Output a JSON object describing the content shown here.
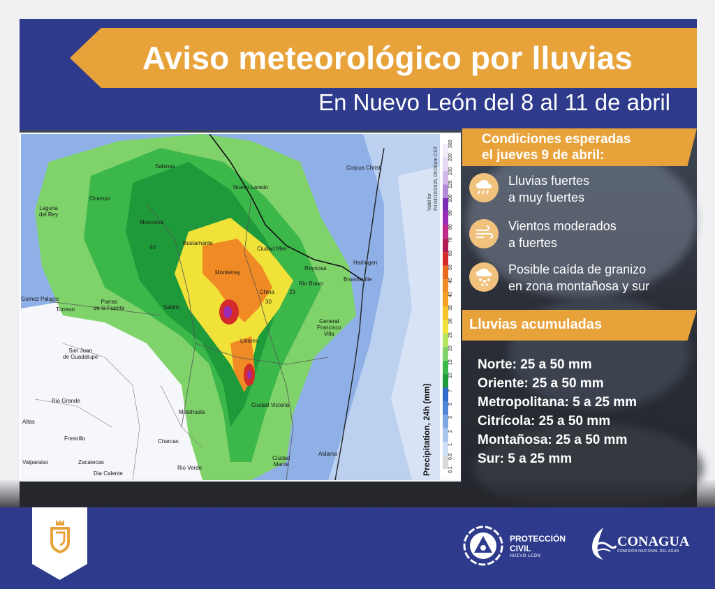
{
  "header": {
    "title": "Aviso meteorológico por lluvias",
    "subtitle": "En Nuevo León del 8 al 11 de abril"
  },
  "map": {
    "colorbar_title": "Precipitation, 24h (mm)",
    "valid_text": "Valid for\nFri 04/10/2026, 09:00am CST",
    "colorbar_ticks": [
      "0.1",
      "0.5",
      "1",
      "2",
      "3",
      "5",
      "7",
      "10",
      "15",
      "20",
      "25",
      "30",
      "35",
      "40",
      "45",
      "50",
      "60",
      "70",
      "80",
      "90",
      "100",
      "125",
      "150",
      "200",
      "300"
    ],
    "places": {
      "corpus_christi": "Corpus Christi",
      "sabinas": "Sabinas",
      "nuevo_laredo": "Nuevo Laredo",
      "ocampo": "Ocampo",
      "laguna_del_rey": "Laguna\ndel Rey",
      "monclova": "Monclova",
      "bustamante": "Bustamante",
      "ciudad_mier": "Ciudad Mier",
      "reynosa": "Reynosa",
      "harlingen": "Harlingen",
      "brownsville": "Brownsville",
      "rio_bravo": "Rio Bravo",
      "monterrey": "Monterrey",
      "china": "China",
      "gomez_palacio": "Gomez Palacio",
      "torreon": "Torreon",
      "parras": "Parras\nde la Fuente",
      "saltillo": "Saltillo",
      "general_francisco_villa": "General\nFrancisco\nVilla",
      "linares": "Linares",
      "san_juan": "San Juan\nde Guadalupe",
      "rio_grande": "Rio Grande",
      "ciudad_victoria": "Ciudad Victoria",
      "matehuala": "Matehuala",
      "fresnillo": "Fresnillo",
      "charcas": "Charcas",
      "valparaiso": "Valparaiso",
      "zacatecas": "Zacatecas",
      "dia_calente": "Dia Calente",
      "ciudad_mante": "Ciudad\nMante",
      "aldama": "Aldama",
      "rio_verde": "Rio Verde",
      "altas": "Altas",
      "num_40": "40",
      "num_23": "23",
      "num_30": "30"
    }
  },
  "conditions": {
    "heading": "Condiciones esperadas\nel jueves 9 de abril:",
    "items": [
      {
        "icon": "rain-cloud-icon",
        "text": "Lluvias fuertes\na muy fuertes"
      },
      {
        "icon": "wind-icon",
        "text": "Vientos moderados\na fuertes"
      },
      {
        "icon": "hail-icon",
        "text": "Posible caída de granizo\nen zona montañosa y sur"
      }
    ]
  },
  "accumulated": {
    "heading": "Lluvias acumuladas",
    "lines": [
      "Norte: 25 a 50 mm",
      "Oriente: 25 a 50 mm",
      "Metropolitana: 5 a 25 mm",
      "Citrícola: 25 a 50 mm",
      "Montañosa: 25 a 50 mm",
      "Sur: 5 a 25 mm"
    ]
  },
  "footer": {
    "pc_title": "PROTECCIÓN\nCIVIL",
    "pc_sub": "NUEVO LEÓN",
    "conagua_title": "CONAGUA",
    "conagua_sub": "COMISIÓN NACIONAL DEL AGUA"
  },
  "colors": {
    "navy": "#2e3a8c",
    "accent": "#e8a23a"
  }
}
